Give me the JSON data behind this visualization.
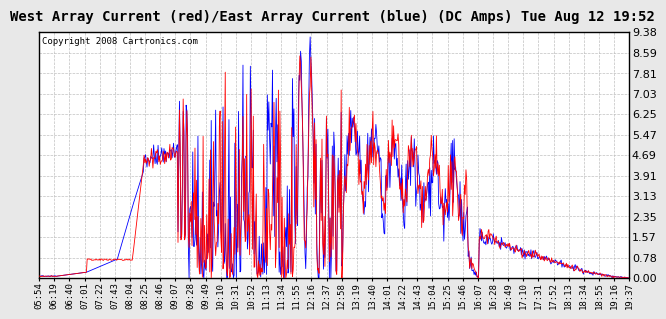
{
  "title": "West Array Current (red)/East Array Current (blue) (DC Amps) Tue Aug 12 19:52",
  "copyright": "Copyright 2008 Cartronics.com",
  "yticks": [
    0.0,
    0.78,
    1.57,
    2.35,
    3.13,
    3.91,
    4.69,
    5.47,
    6.25,
    7.03,
    7.81,
    8.59,
    9.38
  ],
  "ylim": [
    0.0,
    9.38
  ],
  "xtick_labels": [
    "05:54",
    "06:19",
    "06:40",
    "07:01",
    "07:22",
    "07:43",
    "08:04",
    "08:25",
    "08:46",
    "09:07",
    "09:28",
    "09:49",
    "10:10",
    "10:31",
    "10:52",
    "11:13",
    "11:34",
    "11:55",
    "12:16",
    "12:37",
    "12:58",
    "13:19",
    "13:40",
    "14:01",
    "14:22",
    "14:43",
    "15:04",
    "15:25",
    "15:46",
    "16:07",
    "16:28",
    "16:49",
    "17:10",
    "17:31",
    "17:52",
    "18:13",
    "18:34",
    "18:55",
    "19:16",
    "19:37"
  ],
  "outer_bg_color": "#e8e8e8",
  "plot_bg_color": "#ffffff",
  "grid_color": "#c0c0c0",
  "red_color": "#ff0000",
  "blue_color": "#0000ff",
  "title_color": "#000000",
  "border_color": "#000000",
  "title_fontsize": 10,
  "copyright_fontsize": 6.5,
  "ytick_fontsize": 8,
  "xtick_fontsize": 6.5
}
